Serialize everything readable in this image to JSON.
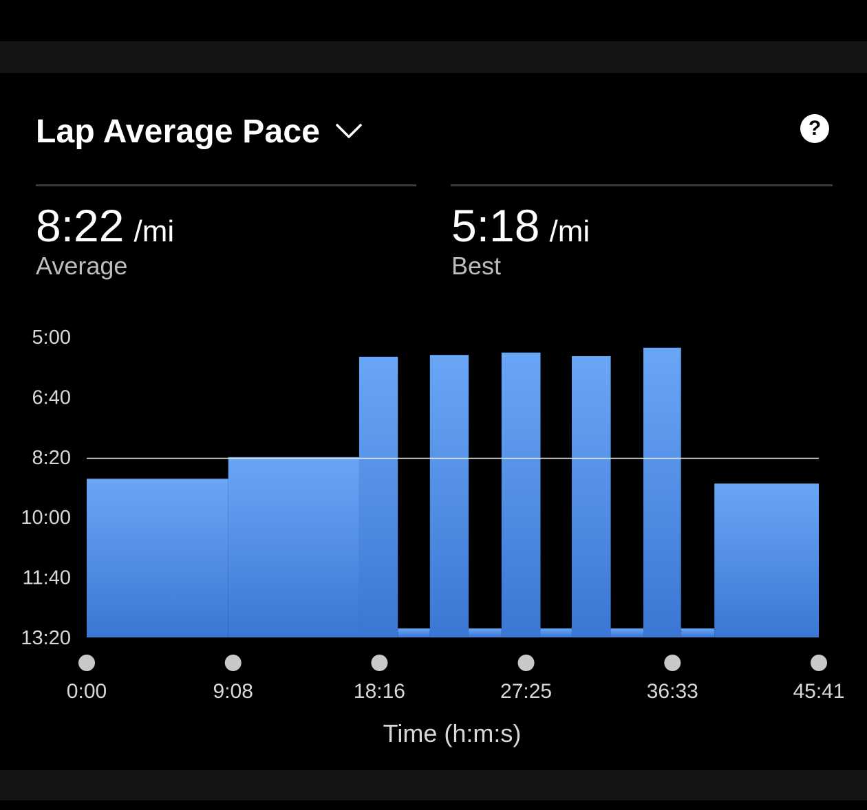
{
  "header": {
    "title": "Lap Average Pace",
    "dropdown_icon": "chevron-down-icon",
    "help_icon": "help-icon",
    "help_label": "?"
  },
  "stats": {
    "average": {
      "value": "8:22",
      "unit": "/mi",
      "label": "Average"
    },
    "best": {
      "value": "5:18",
      "unit": "/mi",
      "label": "Best"
    }
  },
  "colors": {
    "background": "#000000",
    "bar_top": "#6aa6f6",
    "bar_bottom": "#3a77d4",
    "average_line": "#e6e6e6",
    "marker": "#c8c8c8"
  },
  "chart_data": {
    "type": "bar",
    "title": "",
    "xlabel": "Time (h:m:s)",
    "ylabel": "",
    "y_inverted": true,
    "y_unit": "min/mi",
    "yticks": [
      "5:00",
      "6:40",
      "8:20",
      "10:00",
      "11:40",
      "13:20"
    ],
    "yticks_seconds": [
      300,
      400,
      500,
      600,
      700,
      800
    ],
    "ylim_seconds": [
      300,
      800
    ],
    "xticks": [
      "0:00",
      "9:08",
      "18:16",
      "27:25",
      "36:33",
      "45:41"
    ],
    "xticks_seconds": [
      0,
      548,
      1096,
      1645,
      2193,
      2741
    ],
    "xlim_seconds": [
      0,
      2741
    ],
    "average_line_seconds": 502,
    "laps": [
      {
        "start": 0,
        "end": 530,
        "pace_seconds": 536
      },
      {
        "start": 530,
        "end": 1020,
        "pace_seconds": 500
      },
      {
        "start": 1020,
        "end": 1165,
        "pace_seconds": 333
      },
      {
        "start": 1165,
        "end": 1285,
        "pace_seconds": 785
      },
      {
        "start": 1285,
        "end": 1430,
        "pace_seconds": 330
      },
      {
        "start": 1430,
        "end": 1553,
        "pace_seconds": 785
      },
      {
        "start": 1553,
        "end": 1699,
        "pace_seconds": 326
      },
      {
        "start": 1699,
        "end": 1816,
        "pace_seconds": 785
      },
      {
        "start": 1816,
        "end": 1962,
        "pace_seconds": 332
      },
      {
        "start": 1962,
        "end": 2084,
        "pace_seconds": 785
      },
      {
        "start": 2084,
        "end": 2225,
        "pace_seconds": 318
      },
      {
        "start": 2225,
        "end": 2350,
        "pace_seconds": 785
      },
      {
        "start": 2350,
        "end": 2741,
        "pace_seconds": 544
      }
    ]
  }
}
